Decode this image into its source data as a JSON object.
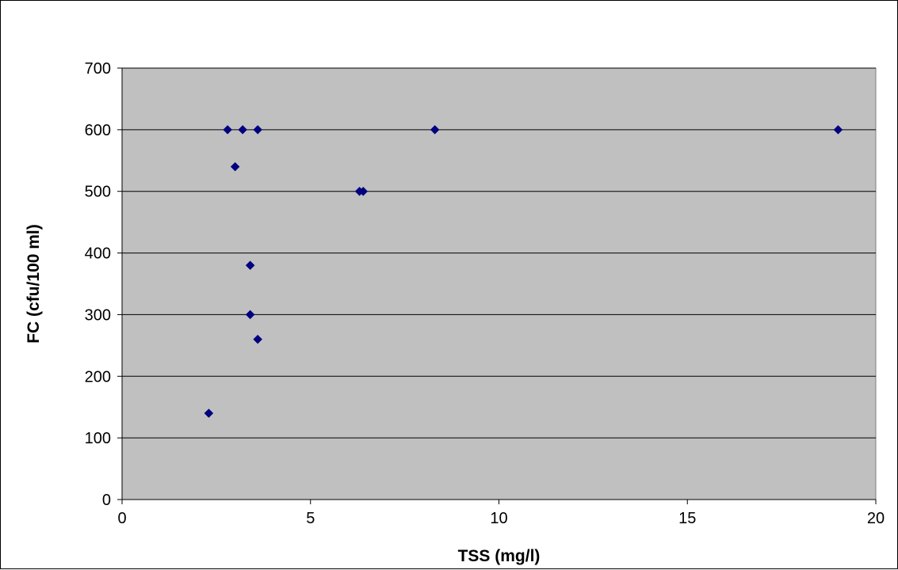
{
  "chart_data": {
    "type": "scatter",
    "title": "",
    "xlabel": "TSS (mg/l)",
    "ylabel": "FC (cfu/100 ml)",
    "xlim": [
      0,
      20
    ],
    "ylim": [
      0,
      700
    ],
    "x_ticks": [
      "0",
      "5",
      "10",
      "15",
      "20"
    ],
    "y_ticks": [
      "0",
      "100",
      "200",
      "300",
      "400",
      "500",
      "600",
      "700"
    ],
    "grid": "horizontal",
    "plot_background": "#C0C0C0",
    "marker_color": "#000080",
    "marker_shape": "diamond",
    "points": [
      {
        "x": 2.3,
        "y": 140
      },
      {
        "x": 2.8,
        "y": 600
      },
      {
        "x": 3.0,
        "y": 540
      },
      {
        "x": 3.2,
        "y": 600
      },
      {
        "x": 3.4,
        "y": 380
      },
      {
        "x": 3.4,
        "y": 300
      },
      {
        "x": 3.6,
        "y": 600
      },
      {
        "x": 3.6,
        "y": 260
      },
      {
        "x": 6.3,
        "y": 500
      },
      {
        "x": 6.4,
        "y": 500
      },
      {
        "x": 8.3,
        "y": 600
      },
      {
        "x": 19.0,
        "y": 600
      }
    ]
  }
}
